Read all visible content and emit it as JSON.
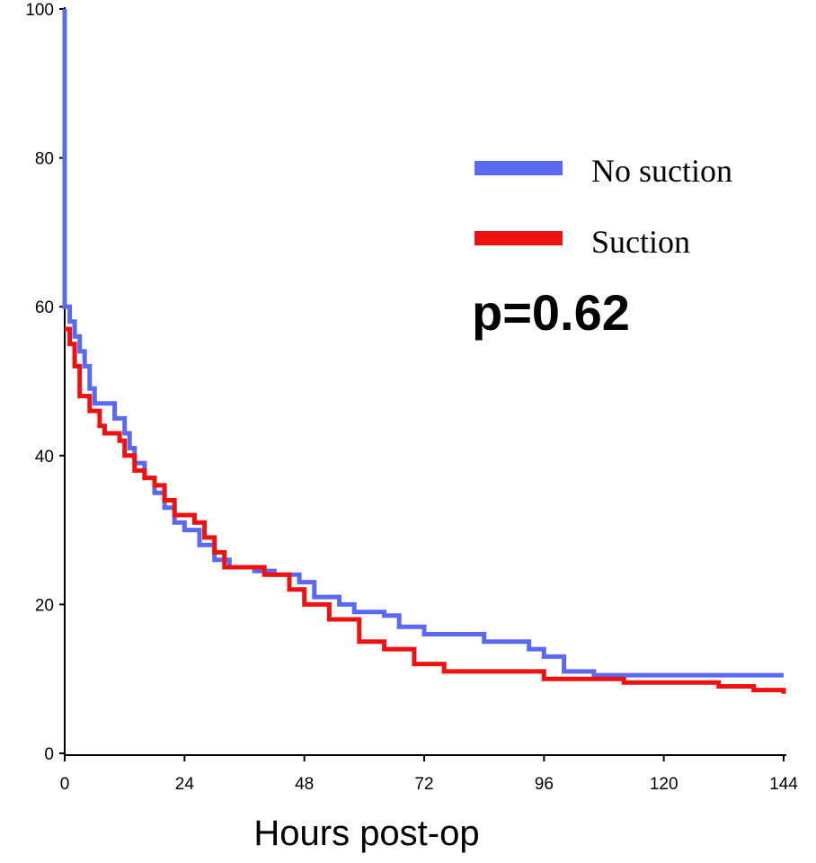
{
  "chart_data": {
    "type": "line",
    "title": "",
    "xlabel": "Hours post-op",
    "ylabel": "",
    "xlim": [
      0,
      144
    ],
    "ylim": [
      0,
      100
    ],
    "x_ticks": [
      0,
      24,
      48,
      72,
      96,
      120,
      144
    ],
    "y_ticks": [
      0,
      20,
      40,
      60,
      80,
      100
    ],
    "grid": false,
    "legend_position": "top-right",
    "annotation": "p=0.62",
    "series": [
      {
        "name": "No suction",
        "color": "#5a6af0",
        "step": true,
        "points": [
          [
            0,
            100
          ],
          [
            0,
            60
          ],
          [
            1,
            58
          ],
          [
            2,
            56
          ],
          [
            3,
            54
          ],
          [
            4,
            52
          ],
          [
            5,
            49
          ],
          [
            6,
            47
          ],
          [
            9,
            47
          ],
          [
            10,
            45
          ],
          [
            12,
            43
          ],
          [
            13,
            41
          ],
          [
            14,
            39
          ],
          [
            16,
            37
          ],
          [
            18,
            35
          ],
          [
            20,
            33
          ],
          [
            22,
            31
          ],
          [
            24,
            30
          ],
          [
            27,
            28
          ],
          [
            30,
            26
          ],
          [
            33,
            25
          ],
          [
            38,
            24.5
          ],
          [
            42,
            24
          ],
          [
            47,
            23
          ],
          [
            50,
            21
          ],
          [
            55,
            20
          ],
          [
            58,
            19
          ],
          [
            64,
            18.5
          ],
          [
            67,
            17
          ],
          [
            72,
            16
          ],
          [
            84,
            15
          ],
          [
            93,
            14
          ],
          [
            96,
            13
          ],
          [
            100,
            11
          ],
          [
            106,
            10.5
          ],
          [
            144,
            10.5
          ]
        ]
      },
      {
        "name": "Suction",
        "color": "#ee1111",
        "step": true,
        "points": [
          [
            0,
            57
          ],
          [
            1,
            55
          ],
          [
            2,
            52
          ],
          [
            3,
            48
          ],
          [
            5,
            46
          ],
          [
            7,
            44
          ],
          [
            8,
            43
          ],
          [
            11,
            42
          ],
          [
            12,
            40
          ],
          [
            14,
            38
          ],
          [
            16,
            37
          ],
          [
            18,
            36
          ],
          [
            20,
            34
          ],
          [
            22,
            32
          ],
          [
            26,
            31
          ],
          [
            28,
            29
          ],
          [
            30,
            27
          ],
          [
            32,
            25
          ],
          [
            40,
            24
          ],
          [
            45,
            22
          ],
          [
            48,
            20
          ],
          [
            53,
            18
          ],
          [
            59,
            15
          ],
          [
            64,
            14
          ],
          [
            70,
            12
          ],
          [
            76,
            11
          ],
          [
            96,
            10
          ],
          [
            112,
            9.5
          ],
          [
            131,
            9
          ],
          [
            138,
            8.5
          ],
          [
            144,
            8
          ]
        ]
      }
    ]
  }
}
